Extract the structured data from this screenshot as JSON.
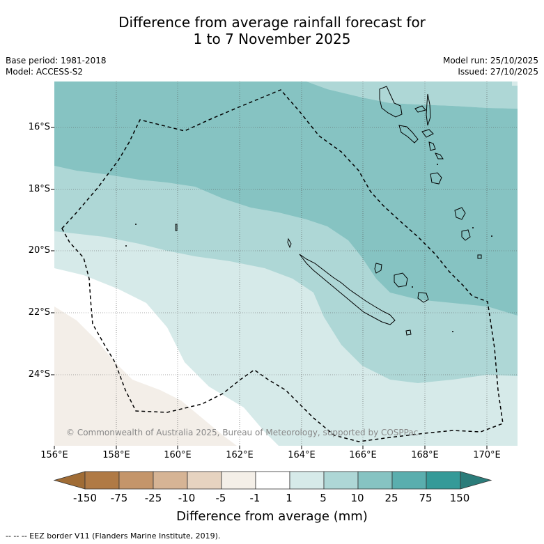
{
  "title_line1": "Difference from average rainfall forecast for",
  "title_line2": "1 to 7 November 2025",
  "base_period": "Base period: 1981-2018",
  "model": "Model: ACCESS-S2",
  "model_run": "Model run: 25/10/2025",
  "issued": "Issued: 27/10/2025",
  "copyright": "© Commonwealth of Australia 2025, Bureau of Meteorology, supported by COSPPac",
  "lat_labels": [
    "16°S",
    "18°S",
    "20°S",
    "22°S",
    "24°S"
  ],
  "lon_labels": [
    "156°E",
    "158°E",
    "160°E",
    "162°E",
    "164°E",
    "166°E",
    "168°E",
    "170°E"
  ],
  "colorbar": {
    "title": "Difference from average (mm)",
    "labels": [
      "-150",
      "-75",
      "-25",
      "-10",
      "-5",
      "-1",
      "1",
      "5",
      "10",
      "25",
      "75",
      "150"
    ],
    "colors": [
      "#a06c35",
      "#b07a45",
      "#c4956a",
      "#d6b495",
      "#e6d3c0",
      "#f4efe8",
      "#ffffff",
      "#d6eae9",
      "#aed7d6",
      "#86c3c2",
      "#5aaeae",
      "#359a98",
      "#2b7c7a"
    ]
  },
  "footer": "--  --  -- EEZ border V11 (Flanders Marine Institute, 2019).",
  "colors": {
    "band_brown": "#f3eee8",
    "band_white": "#ffffff",
    "band_light": "#d6eae9",
    "band_mid": "#aed7d6",
    "band_dark": "#86c3c2"
  }
}
